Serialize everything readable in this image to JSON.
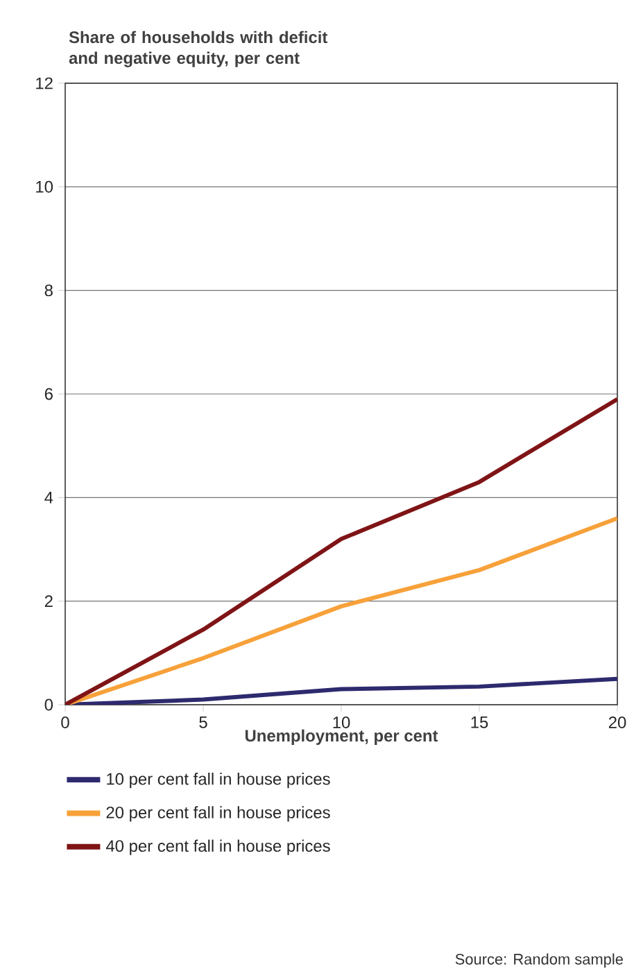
{
  "chart_data": {
    "type": "line",
    "ylabel": "Share of households with deficit and negative equity, per cent",
    "xlabel": "Unemployment, per cent",
    "x": [
      0,
      5,
      10,
      15,
      20
    ],
    "series": [
      {
        "name": "10 per cent fall in house prices",
        "color": "#2e2a6e",
        "values": [
          0,
          0.1,
          0.3,
          0.35,
          0.5
        ]
      },
      {
        "name": "20 per cent fall in house prices",
        "color": "#f7a13a",
        "values": [
          0,
          0.9,
          1.9,
          2.6,
          3.6
        ]
      },
      {
        "name": "40 per cent fall in house prices",
        "color": "#7f1416",
        "values": [
          0,
          1.45,
          3.2,
          4.3,
          5.9
        ]
      }
    ],
    "xlim": [
      0,
      20
    ],
    "xticks": [
      0,
      5,
      10,
      15,
      20
    ],
    "ylim": [
      0,
      12
    ],
    "yticks": [
      0,
      2,
      4,
      6,
      8,
      10,
      12
    ],
    "grid": "y",
    "legend": "bottom",
    "line_style": "solid",
    "annotations": [
      "Source: Random sample"
    ]
  }
}
